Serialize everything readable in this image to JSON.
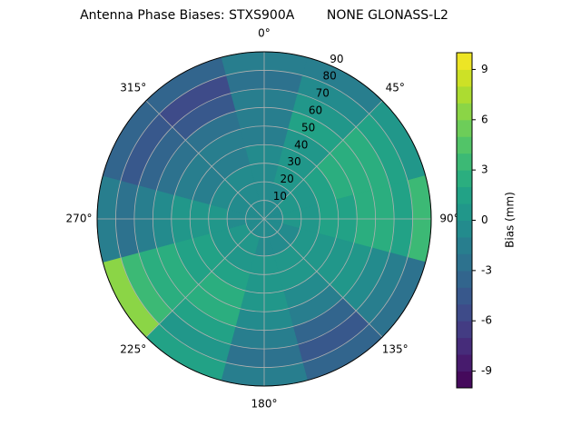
{
  "chart_data": {
    "type": "polar-contour",
    "title": "Antenna Phase Biases: STXS900A        NONE GLONASS-L2",
    "colorbar_label": "Bias (mm)",
    "theta": [
      0,
      30,
      60,
      90,
      120,
      150,
      180,
      210,
      240,
      270,
      300,
      330
    ],
    "r": [
      5,
      15,
      25,
      35,
      45,
      55,
      65,
      75,
      85
    ],
    "field": [
      [
        -1,
        -1,
        -1,
        -1,
        -2,
        -2,
        -2,
        -3,
        -2
      ],
      [
        -1,
        -1,
        0,
        0,
        0,
        1,
        0,
        -1,
        -2
      ],
      [
        -1,
        0,
        0,
        1,
        2,
        2,
        2,
        1,
        0
      ],
      [
        -1,
        0,
        0,
        1,
        1,
        2,
        2,
        1,
        3
      ],
      [
        -1,
        -1,
        0,
        0,
        0,
        0,
        -1,
        -2,
        -3
      ],
      [
        -1,
        -1,
        0,
        0,
        -1,
        -2,
        -4,
        -5,
        -4
      ],
      [
        -1,
        -1,
        0,
        0,
        0,
        -1,
        -2,
        -3,
        -2
      ],
      [
        -1,
        0,
        0,
        1,
        2,
        2,
        1,
        0,
        1
      ],
      [
        -1,
        0,
        0,
        1,
        1,
        2,
        2,
        3,
        6
      ],
      [
        -1,
        -1,
        0,
        0,
        0,
        -1,
        -2,
        -3,
        -2
      ],
      [
        -1,
        -1,
        -1,
        -2,
        -2,
        -3,
        -4,
        -5,
        -4
      ],
      [
        -1,
        -1,
        -1,
        -2,
        -2,
        -3,
        -5,
        -6,
        -4
      ]
    ],
    "rlim": [
      0,
      90
    ],
    "rticks": [
      10,
      20,
      30,
      40,
      50,
      60,
      70,
      80,
      90
    ],
    "thetaticks": [
      {
        "value": 0,
        "label": "0°"
      },
      {
        "value": 45,
        "label": "45°"
      },
      {
        "value": 90,
        "label": "90°"
      },
      {
        "value": 135,
        "label": "135°"
      },
      {
        "value": 180,
        "label": "180°"
      },
      {
        "value": 225,
        "label": "225°"
      },
      {
        "value": 270,
        "label": "270°"
      },
      {
        "value": 315,
        "label": "315°"
      }
    ],
    "clim": [
      -10,
      10
    ],
    "cticks": [
      -9,
      -6,
      -3,
      0,
      3,
      6,
      9
    ],
    "grid": true
  }
}
